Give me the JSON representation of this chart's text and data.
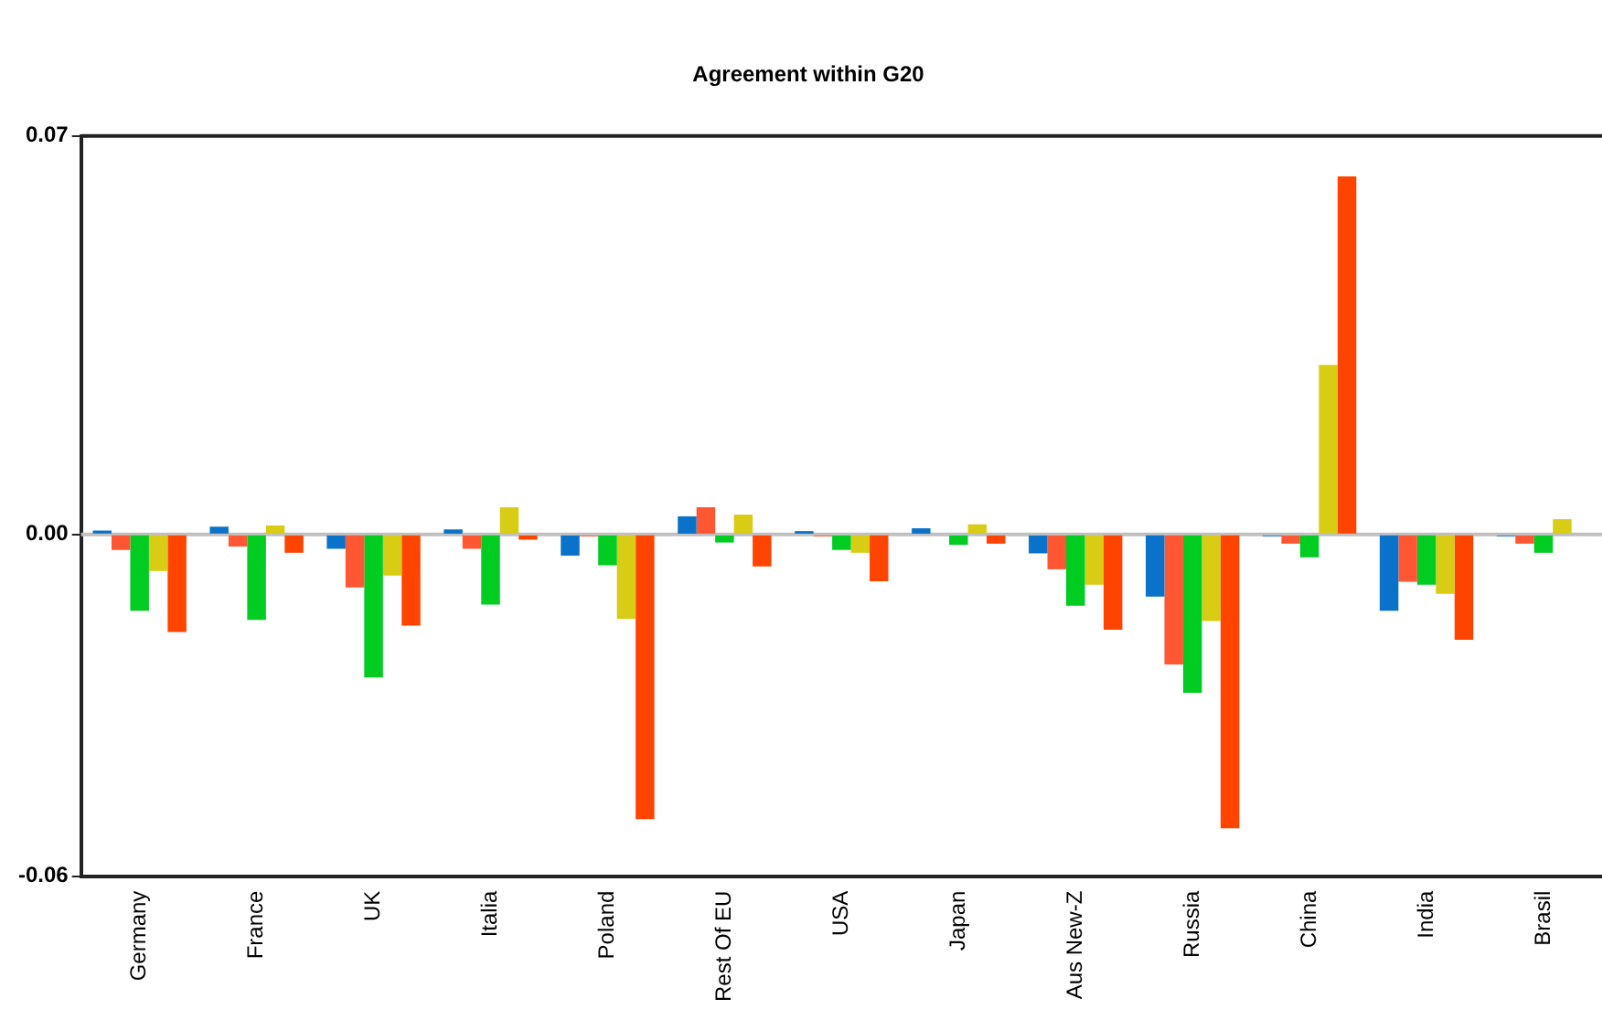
{
  "chart_data": {
    "type": "bar",
    "title": "Agreement within G20",
    "categories": [
      "Germany",
      "France",
      "UK",
      "Italia",
      "Poland",
      "Rest Of EU",
      "USA",
      "Japan",
      "Aus New-Z",
      "Russia",
      "China",
      "India",
      "Brasil"
    ],
    "series": [
      {
        "color": "#0a72c8",
        "values": [
          0.0007,
          0.0014,
          -0.0025,
          0.0009,
          -0.0037,
          0.0032,
          0.0006,
          0.0011,
          -0.0033,
          -0.0109,
          -0.0003,
          -0.0134,
          -0.0003
        ]
      },
      {
        "color": "#ff5733",
        "values": [
          -0.0027,
          -0.0021,
          -0.0093,
          -0.0025,
          -0.0003,
          0.0048,
          -0.0003,
          null,
          -0.0061,
          -0.0228,
          -0.0016,
          -0.0083,
          -0.0016
        ]
      },
      {
        "color": "#00cc22",
        "values": [
          -0.0134,
          -0.015,
          -0.0251,
          -0.0123,
          -0.0054,
          -0.0014,
          -0.0027,
          -0.0018,
          -0.0125,
          -0.0278,
          -0.004,
          -0.0088,
          -0.0032
        ]
      },
      {
        "color": "#d8cc14",
        "values": [
          -0.0064,
          0.0016,
          -0.0072,
          0.0048,
          -0.0148,
          0.0035,
          -0.0032,
          0.0018,
          -0.0088,
          -0.0152,
          0.0298,
          -0.0104,
          0.0027
        ]
      },
      {
        "color": "#ff4400",
        "values": [
          -0.0171,
          -0.0032,
          -0.016,
          -0.0009,
          -0.05,
          -0.0056,
          -0.0082,
          -0.0016,
          -0.0167,
          -0.0516,
          0.0629,
          -0.0185,
          null
        ]
      }
    ],
    "ylim": [
      -0.06,
      0.07
    ],
    "yticks": [
      -0.06,
      {
        "value": 0,
        "label": "0.00"
      },
      0.07
    ],
    "grid": false,
    "legend": false,
    "ref_lines": [
      {
        "axis": "y",
        "value": 0,
        "color": "#c0c0c0"
      }
    ]
  }
}
